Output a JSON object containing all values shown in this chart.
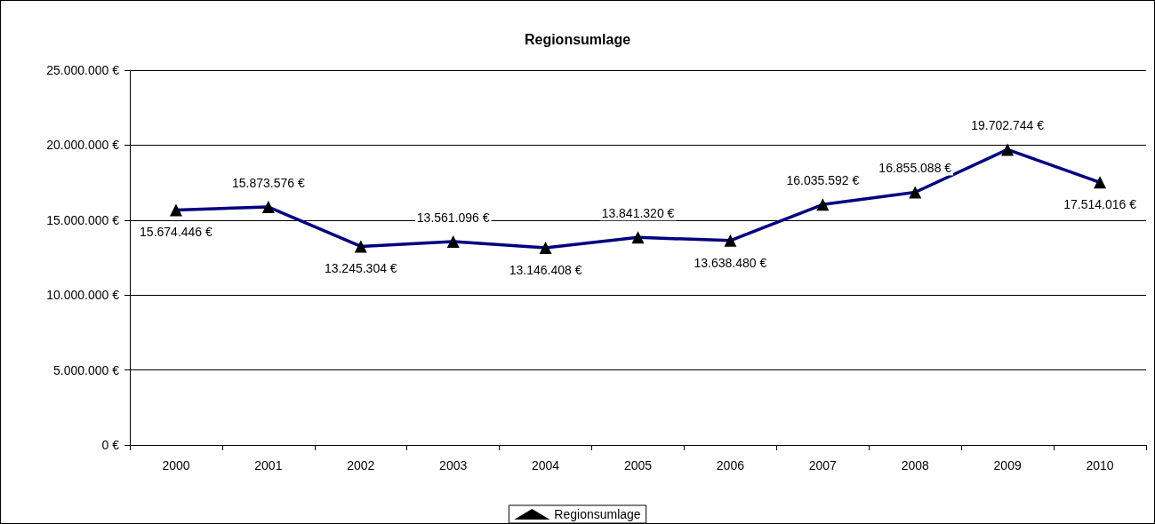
{
  "chart_data": {
    "type": "line",
    "title": "Regionsumlage",
    "categories": [
      "2000",
      "2001",
      "2002",
      "2003",
      "2004",
      "2005",
      "2006",
      "2007",
      "2008",
      "2009",
      "2010"
    ],
    "series": [
      {
        "name": "Regionsumlage",
        "color": "#000080",
        "values": [
          15674446,
          15873576,
          13245304,
          13561096,
          13146408,
          13841320,
          13638480,
          16035592,
          16855088,
          19702744,
          17514016
        ],
        "value_labels": [
          "15.674.446 €",
          "15.873.576 €",
          "13.245.304 €",
          "13.561.096 €",
          "13.146.408 €",
          "13.841.320 €",
          "13.638.480 €",
          "16.035.592 €",
          "16.855.088 €",
          "19.702.744 €",
          "17.514.016 €"
        ]
      }
    ],
    "ylim": [
      0,
      25000000
    ],
    "yticks": [
      {
        "value": 0,
        "label": "0 €"
      },
      {
        "value": 5000000,
        "label": "5.000.000 €"
      },
      {
        "value": 10000000,
        "label": "10.000.000 €"
      },
      {
        "value": 15000000,
        "label": "15.000.000 €"
      },
      {
        "value": 20000000,
        "label": "20.000.000 €"
      },
      {
        "value": 25000000,
        "label": "25.000.000 €"
      }
    ],
    "grid": "y",
    "legend": "bottom",
    "marker": "triangle",
    "line_style": "solid"
  }
}
